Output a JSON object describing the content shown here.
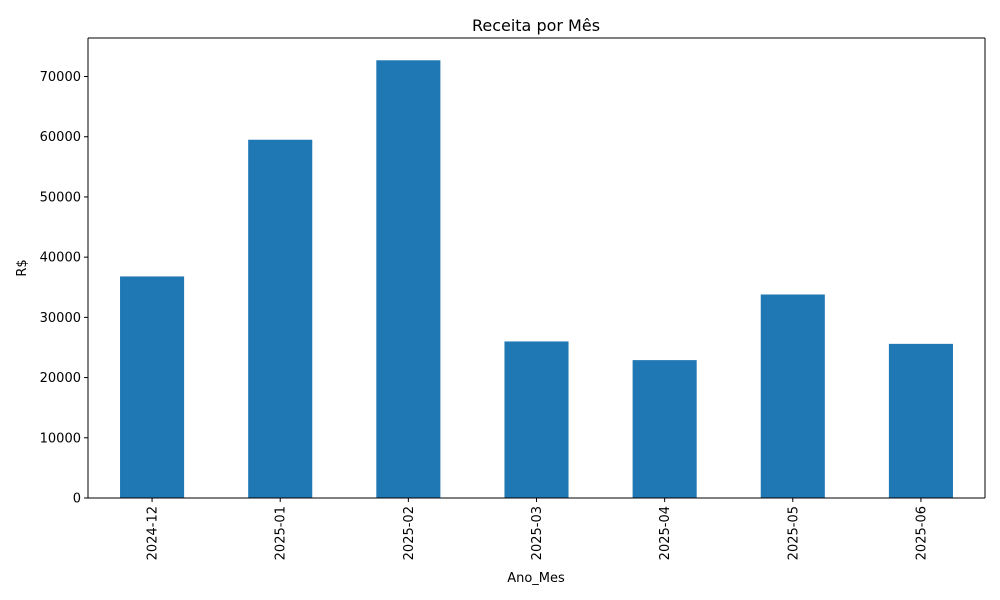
{
  "chart_data": {
    "type": "bar",
    "title": "Receita por Mês",
    "xlabel": "Ano_Mes",
    "ylabel": "R$",
    "categories": [
      "2024-12",
      "2025-01",
      "2025-02",
      "2025-03",
      "2025-04",
      "2025-05",
      "2025-06"
    ],
    "values": [
      36800,
      59500,
      72700,
      26000,
      22900,
      33800,
      25600
    ],
    "ylim": [
      0,
      76400
    ],
    "yticks": [
      0,
      10000,
      20000,
      30000,
      40000,
      50000,
      60000,
      70000
    ],
    "ytick_labels": [
      "0",
      "10000",
      "20000",
      "30000",
      "40000",
      "50000",
      "60000",
      "70000"
    ],
    "bar_color": "#1f77b4",
    "grid": false,
    "legend": "none"
  }
}
